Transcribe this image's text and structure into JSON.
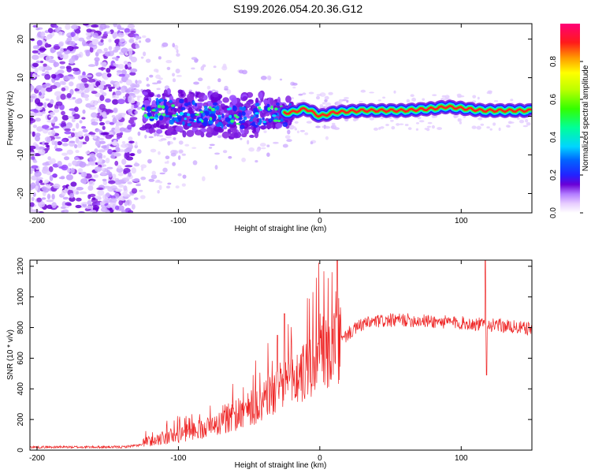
{
  "title": "S199.2026.054.20.36.G12",
  "chart_data": [
    {
      "type": "heatmap",
      "xlabel": "Height of straight line (km)",
      "ylabel": "Frequency (Hz)",
      "xlim": [
        -205,
        150
      ],
      "ylim": [
        -25,
        24
      ],
      "xticks": [
        -200,
        -100,
        0,
        100
      ],
      "yticks": [
        -20,
        -10,
        0,
        10,
        20
      ],
      "colorbar": {
        "label": "Normalized spectral amplitude",
        "range": [
          0.0,
          1.0
        ],
        "ticks": [
          0.0,
          0.2,
          0.4,
          0.6,
          0.8
        ]
      },
      "ridge": [
        {
          "x": -125,
          "y": 1.5
        },
        {
          "x": -100,
          "y": 1
        },
        {
          "x": -80,
          "y": 0.5
        },
        {
          "x": -60,
          "y": 0
        },
        {
          "x": -40,
          "y": 0.5
        },
        {
          "x": -20,
          "y": 1
        },
        {
          "x": -10,
          "y": 2
        },
        {
          "x": 0,
          "y": 0
        },
        {
          "x": 10,
          "y": 1
        },
        {
          "x": 30,
          "y": 1.5
        },
        {
          "x": 60,
          "y": 1.5
        },
        {
          "x": 80,
          "y": 2
        },
        {
          "x": 90,
          "y": 2.5
        },
        {
          "x": 115,
          "y": 1.5
        },
        {
          "x": 150,
          "y": 1.5
        }
      ]
    },
    {
      "type": "line",
      "xlabel": "Height of straight line (km)",
      "ylabel": "SNR (10 * v/v)",
      "xlim": [
        -205,
        150
      ],
      "ylim": [
        0,
        1240
      ],
      "xticks": [
        -200,
        -100,
        0,
        100
      ],
      "yticks": [
        0,
        200,
        400,
        600,
        800,
        1000,
        1200
      ],
      "color": "#ee2222",
      "envelope": [
        {
          "x": -205,
          "y": 20
        },
        {
          "x": -140,
          "y": 20
        },
        {
          "x": -120,
          "y": 40
        },
        {
          "x": -100,
          "y": 80
        },
        {
          "x": -80,
          "y": 130
        },
        {
          "x": -60,
          "y": 200
        },
        {
          "x": -40,
          "y": 300
        },
        {
          "x": -25,
          "y": 400
        },
        {
          "x": -10,
          "y": 480
        },
        {
          "x": 0,
          "y": 580
        },
        {
          "x": 10,
          "y": 650
        },
        {
          "x": 20,
          "y": 760
        },
        {
          "x": 30,
          "y": 820
        },
        {
          "x": 40,
          "y": 840
        },
        {
          "x": 60,
          "y": 850
        },
        {
          "x": 80,
          "y": 840
        },
        {
          "x": 100,
          "y": 830
        },
        {
          "x": 115,
          "y": 820
        },
        {
          "x": 130,
          "y": 810
        },
        {
          "x": 150,
          "y": 790
        }
      ],
      "spikes": [
        {
          "x": -25,
          "y": 890
        },
        {
          "x": -30,
          "y": 750
        },
        {
          "x": 117,
          "y": 1240
        },
        {
          "x": 118,
          "y": 490
        }
      ]
    }
  ]
}
